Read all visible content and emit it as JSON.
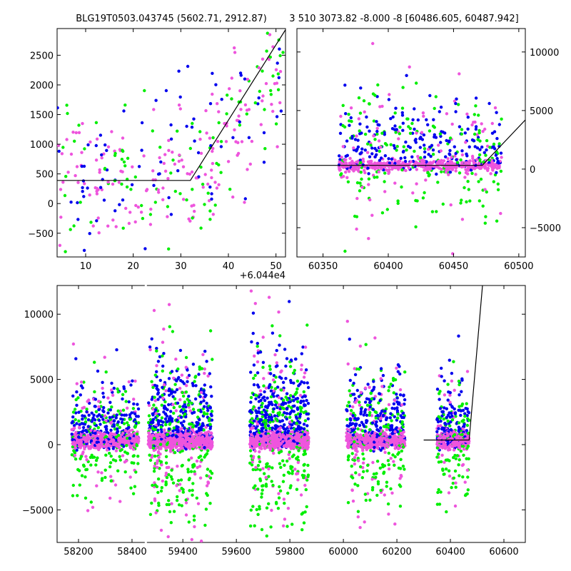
{
  "colors": {
    "blue": "#0000ee",
    "green": "#00ee00",
    "violet": "#ee55dd",
    "line": "#000000"
  },
  "chart_data": [
    {
      "type": "scatter",
      "panel": "top-left",
      "title": "BLG19T0503.043745 (5602.71, 2912.87)",
      "xlim": [
        4,
        52
      ],
      "ylim": [
        -900,
        2950
      ],
      "xticks": [
        10,
        20,
        30,
        40,
        50
      ],
      "yticks": [
        -500,
        0,
        500,
        1000,
        1500,
        2000,
        2500
      ],
      "xtick_labels": [
        "10",
        "20",
        "30",
        "40",
        "50"
      ],
      "ytick_labels": [
        "−500",
        "0",
        "500",
        "1000",
        "1500",
        "2000",
        "2500"
      ],
      "x_offset_label": "+6.044e4",
      "model_line": {
        "x": [
          4,
          32,
          52
        ],
        "y": [
          390,
          390,
          2930
        ]
      }
    },
    {
      "type": "scatter",
      "panel": "top-right",
      "title": "3 510 3073.82 -8.000 -8 [60486.605, 60487.942]",
      "xlim": [
        60330,
        60505
      ],
      "ylim": [
        -7500,
        12000
      ],
      "xticks": [
        60350,
        60400,
        60450,
        60500
      ],
      "yticks": [
        -5000,
        0,
        5000,
        10000
      ],
      "xtick_labels": [
        "60350",
        "60400",
        "60450",
        "60500"
      ],
      "ytick_labels": [
        "−5000",
        "0",
        "5000",
        "10000"
      ],
      "y_axis_side": "right",
      "model_line": {
        "x": [
          60330,
          60472,
          60505
        ],
        "y": [
          320,
          320,
          4200
        ]
      }
    },
    {
      "type": "scatter",
      "panel": "bottom",
      "xlim": [
        58120,
        60680
      ],
      "ylim": [
        -7500,
        12200
      ],
      "xticks": [
        58200,
        58400,
        59400,
        59600,
        59800,
        60000,
        60200,
        60400,
        60600
      ],
      "yticks": [
        -5000,
        0,
        5000,
        10000
      ],
      "xtick_labels": [
        "58200",
        "58400",
        "59400",
        "59600",
        "59800",
        "60000",
        "60200",
        "60400",
        "60600"
      ],
      "ytick_labels": [
        "−5000",
        "0",
        "5000",
        "10000"
      ],
      "axis_break": [
        58445,
        59255
      ],
      "seasons": [
        [
          58175,
          58425
        ],
        [
          59270,
          59510
        ],
        [
          59650,
          59870
        ],
        [
          60010,
          60230
        ],
        [
          60350,
          60470
        ]
      ],
      "model_line": {
        "x": [
          60300,
          60470,
          60520
        ],
        "y": [
          350,
          350,
          12200
        ]
      }
    }
  ]
}
